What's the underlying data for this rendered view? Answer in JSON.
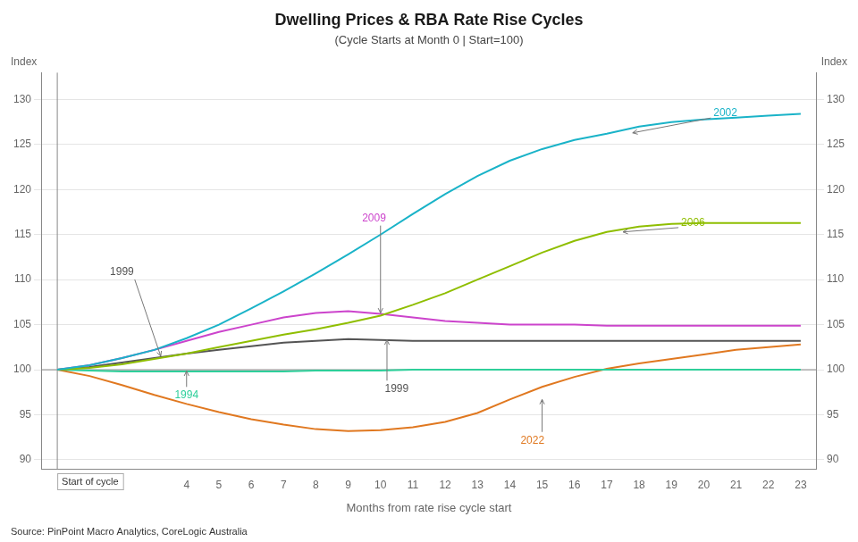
{
  "chart_data": {
    "type": "line",
    "title": "Dwelling Prices & RBA Rate Rise Cycles",
    "subtitle": "(Cycle Starts at Month 0 | Start=100)",
    "xlabel": "Months from rate rise cycle start",
    "ylabel": "Index",
    "y2label": "Index",
    "source": "Source: PinPoint Macro Analytics, CoreLogic Australia",
    "x": [
      0,
      1,
      2,
      3,
      4,
      5,
      6,
      7,
      8,
      9,
      10,
      11,
      12,
      13,
      14,
      15,
      16,
      17,
      18,
      19,
      20,
      21,
      22,
      23
    ],
    "xlim": [
      -0.5,
      23.5
    ],
    "xticks": [
      4,
      5,
      6,
      7,
      8,
      9,
      10,
      11,
      12,
      13,
      14,
      15,
      16,
      17,
      18,
      19,
      20,
      21,
      22,
      23
    ],
    "ylim": [
      89,
      133
    ],
    "yticks": [
      90,
      95,
      100,
      105,
      110,
      115,
      120,
      125,
      130
    ],
    "y2lim": [
      89,
      133
    ],
    "y2ticks": [
      90,
      95,
      100,
      105,
      110,
      115,
      120,
      125,
      130
    ],
    "grid": "y",
    "hlines": [
      100
    ],
    "vlines": [
      0
    ],
    "series": [
      {
        "name": "2002",
        "color": "#1ab3c8",
        "values": [
          100,
          100.5,
          101.3,
          102.2,
          103.5,
          105.0,
          106.8,
          108.7,
          110.7,
          112.8,
          115.0,
          117.3,
          119.5,
          121.5,
          123.2,
          124.5,
          125.5,
          126.2,
          127.0,
          127.5,
          127.8,
          128.0,
          128.2,
          128.4
        ]
      },
      {
        "name": "2006",
        "color": "#8fbe00",
        "values": [
          100,
          100.2,
          100.6,
          101.2,
          101.8,
          102.5,
          103.2,
          103.9,
          104.5,
          105.2,
          106.0,
          107.2,
          108.5,
          110.0,
          111.5,
          113.0,
          114.3,
          115.3,
          115.9,
          116.2,
          116.3,
          116.3,
          116.3,
          116.3
        ]
      },
      {
        "name": "2009",
        "color": "#cc44cc",
        "values": [
          100,
          100.5,
          101.3,
          102.2,
          103.2,
          104.2,
          105.0,
          105.8,
          106.3,
          106.5,
          106.2,
          105.8,
          105.4,
          105.2,
          105.0,
          105.0,
          105.0,
          104.9,
          104.9,
          104.9,
          104.9,
          104.9,
          104.9,
          104.9
        ]
      },
      {
        "name": "1999",
        "color": "#555555",
        "values": [
          100,
          100.3,
          100.8,
          101.3,
          101.8,
          102.2,
          102.6,
          103.0,
          103.2,
          103.4,
          103.3,
          103.2,
          103.2,
          103.2,
          103.2,
          103.2,
          103.2,
          103.2,
          103.2,
          103.2,
          103.2,
          103.2,
          103.2,
          103.2
        ]
      },
      {
        "name": "1994",
        "color": "#2ecf9a",
        "values": [
          100,
          99.9,
          99.8,
          99.8,
          99.8,
          99.8,
          99.8,
          99.8,
          99.9,
          99.9,
          99.9,
          100.0,
          100.0,
          100.0,
          100.0,
          100.0,
          100.0,
          100.0,
          100.0,
          100.0,
          100.0,
          100.0,
          100.0,
          100.0
        ]
      },
      {
        "name": "2022",
        "color": "#e07820",
        "values": [
          100,
          99.3,
          98.3,
          97.2,
          96.2,
          95.3,
          94.5,
          93.9,
          93.4,
          93.2,
          93.3,
          93.6,
          94.2,
          95.2,
          96.7,
          98.1,
          99.2,
          100.1,
          100.7,
          101.2,
          101.7,
          102.2,
          102.5,
          102.8
        ]
      }
    ],
    "annotations": [
      {
        "text": "1999",
        "x": 3.2,
        "y": 101.5,
        "text_x": 2.0,
        "text_y": 110.5,
        "color": "#555555"
      },
      {
        "text": "2009",
        "x": 10.0,
        "y": 106.3,
        "text_x": 9.8,
        "text_y": 116.5,
        "color": "#cc44cc"
      },
      {
        "text": "1999",
        "x": 10.2,
        "y": 103.3,
        "text_x": 10.5,
        "text_y": 97.5,
        "color": "#555555"
      },
      {
        "text": "2022",
        "x": 15.0,
        "y": 96.7,
        "text_x": 14.7,
        "text_y": 91.8,
        "color": "#e07820"
      },
      {
        "text": "2002",
        "x": 17.8,
        "y": 126.3,
        "text_x": 20.3,
        "text_y": 128.2,
        "color": "#1ab3c8"
      },
      {
        "text": "2006",
        "x": 17.5,
        "y": 115.3,
        "text_x": 19.3,
        "text_y": 116.0,
        "color": "#8fbe00"
      },
      {
        "text": "1994",
        "x": 4.0,
        "y": 99.85,
        "text_x": 4.0,
        "text_y": 96.8,
        "color": "#2ecf9a"
      },
      {
        "text": "Start of cycle",
        "x": 0,
        "y": 89,
        "color": "#333333"
      }
    ],
    "legend": false
  }
}
